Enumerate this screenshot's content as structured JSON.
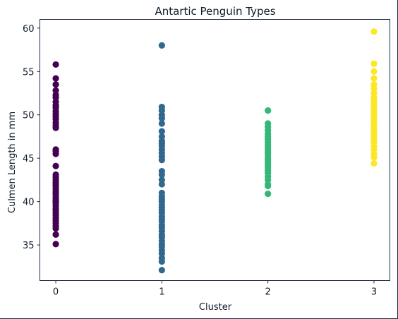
{
  "chart_data": {
    "type": "scatter",
    "title": "Antartic Penguin Types",
    "xlabel": "Cluster",
    "ylabel": "Culmen Length in mm",
    "xlim": [
      -0.15,
      3.15
    ],
    "ylim": [
      30.9,
      61.0
    ],
    "xticks": [
      0,
      1,
      2,
      3
    ],
    "yticks": [
      35,
      40,
      45,
      50,
      55,
      60
    ],
    "grid": false,
    "legend": "none",
    "series": [
      {
        "cluster": 0,
        "color": "#440154",
        "y": [
          35.1,
          36.2,
          36.9,
          37.2,
          37.5,
          37.8,
          38.1,
          38.4,
          38.7,
          39.0,
          39.2,
          39.5,
          39.8,
          40.0,
          40.2,
          40.5,
          40.8,
          41.0,
          41.2,
          41.5,
          41.8,
          42.0,
          42.2,
          42.5,
          42.8,
          43.1,
          44.1,
          45.5,
          45.8,
          46.0,
          48.5,
          48.8,
          49.1,
          49.5,
          49.8,
          50.1,
          50.4,
          50.8,
          51.1,
          51.5,
          52.0,
          52.3,
          52.8,
          53.5,
          54.2,
          55.8
        ]
      },
      {
        "cluster": 1,
        "color": "#31688e",
        "y": [
          32.1,
          33.1,
          33.5,
          34.0,
          34.4,
          34.8,
          35.1,
          35.5,
          35.9,
          36.2,
          36.6,
          37.0,
          37.3,
          37.7,
          38.0,
          38.3,
          38.7,
          39.0,
          39.3,
          39.6,
          40.0,
          40.3,
          40.6,
          41.0,
          42.0,
          42.5,
          43.1,
          43.5,
          44.8,
          45.2,
          45.6,
          46.0,
          46.4,
          46.7,
          47.0,
          47.5,
          48.1,
          49.0,
          49.6,
          50.0,
          50.5,
          50.9,
          58.0
        ]
      },
      {
        "cluster": 2,
        "color": "#35b779",
        "y": [
          40.9,
          41.8,
          42.0,
          42.5,
          42.9,
          43.3,
          43.6,
          43.9,
          44.2,
          44.5,
          44.8,
          45.1,
          45.4,
          45.7,
          46.0,
          46.3,
          46.6,
          46.9,
          47.2,
          47.5,
          47.8,
          48.2,
          48.6,
          49.0,
          50.5
        ]
      },
      {
        "cluster": 3,
        "color": "#fde725",
        "y": [
          44.4,
          45.1,
          45.5,
          46.0,
          46.4,
          46.8,
          47.2,
          47.6,
          48.0,
          48.4,
          48.8,
          49.2,
          49.6,
          50.0,
          50.4,
          50.8,
          51.2,
          51.6,
          52.0,
          52.5,
          53.0,
          53.5,
          54.2,
          55.0,
          55.9,
          59.6
        ]
      }
    ]
  }
}
